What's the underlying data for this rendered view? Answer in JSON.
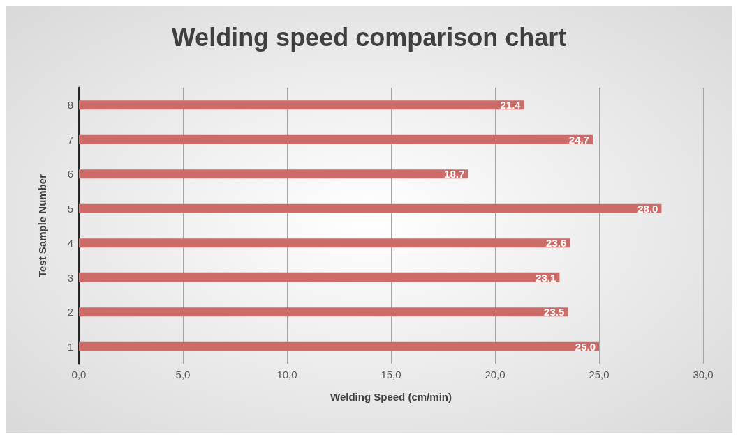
{
  "chart_data": {
    "type": "bar",
    "orientation": "horizontal",
    "title": "Welding speed comparison chart",
    "xlabel": "Welding Speed (cm/min)",
    "ylabel": "Test Sample Number",
    "categories": [
      "8",
      "7",
      "6",
      "5",
      "4",
      "3",
      "2",
      "1"
    ],
    "values": [
      21.4,
      24.7,
      18.7,
      28.0,
      23.6,
      23.1,
      23.5,
      25.0
    ],
    "value_labels": [
      "21.4",
      "24.7",
      "18.7",
      "28.0",
      "23.6",
      "23.1",
      "23.5",
      "25.0"
    ],
    "color": "#cd6b68",
    "xlim": [
      0,
      30
    ],
    "xticks": [
      {
        "value": 0,
        "label": "0,0"
      },
      {
        "value": 5,
        "label": "5,0"
      },
      {
        "value": 10,
        "label": "10,0"
      },
      {
        "value": 15,
        "label": "15,0"
      },
      {
        "value": 20,
        "label": "20,0"
      },
      {
        "value": 25,
        "label": "25,0"
      },
      {
        "value": 30,
        "label": "30,0"
      }
    ],
    "grid": "x"
  }
}
